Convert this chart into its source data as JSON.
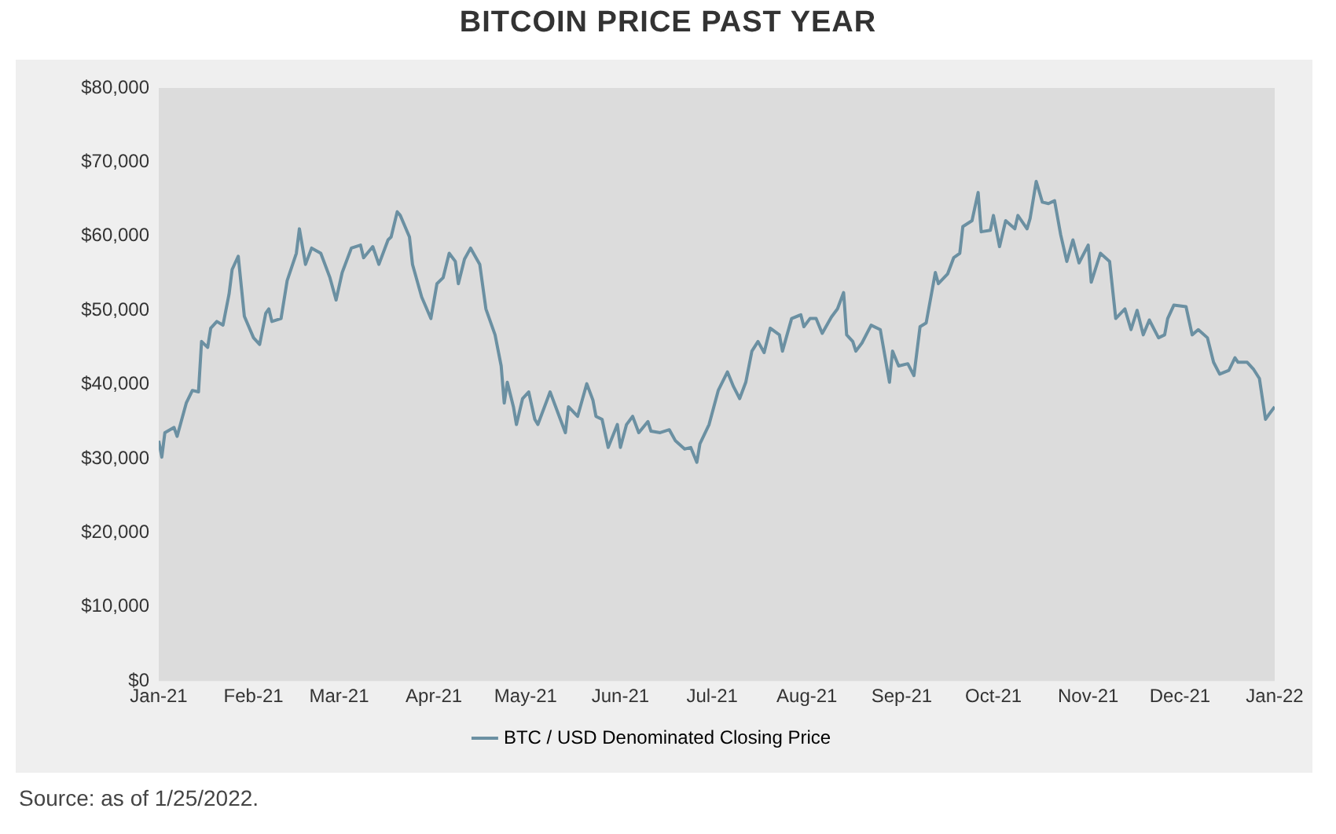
{
  "chart_data": {
    "type": "line",
    "title": "BITCOIN PRICE PAST YEAR",
    "annotations": [
      "Source: as of 1/25/2022."
    ],
    "legend": "bottom",
    "marker": "none",
    "line_style": "solid",
    "grid": false,
    "ylim": [
      0,
      80000
    ],
    "yticks": [
      {
        "value": 0,
        "label": "$0"
      },
      {
        "value": 10000,
        "label": "$10,000"
      },
      {
        "value": 20000,
        "label": "$20,000"
      },
      {
        "value": 30000,
        "label": "$30,000"
      },
      {
        "value": 40000,
        "label": "$40,000"
      },
      {
        "value": 50000,
        "label": "$50,000"
      },
      {
        "value": 60000,
        "label": "$60,000"
      },
      {
        "value": 70000,
        "label": "$70,000"
      },
      {
        "value": 80000,
        "label": "$80,000"
      }
    ],
    "xlim": [
      "2021-01-01",
      "2022-01-01"
    ],
    "xticks": [
      {
        "value": "2021-01-01",
        "label": "Jan-21"
      },
      {
        "value": "2021-02-01",
        "label": "Feb-21"
      },
      {
        "value": "2021-03-01",
        "label": "Mar-21"
      },
      {
        "value": "2021-04-01",
        "label": "Apr-21"
      },
      {
        "value": "2021-05-01",
        "label": "May-21"
      },
      {
        "value": "2021-06-01",
        "label": "Jun-21"
      },
      {
        "value": "2021-07-01",
        "label": "Jul-21"
      },
      {
        "value": "2021-08-01",
        "label": "Aug-21"
      },
      {
        "value": "2021-09-01",
        "label": "Sep-21"
      },
      {
        "value": "2021-10-01",
        "label": "Oct-21"
      },
      {
        "value": "2021-11-01",
        "label": "Nov-21"
      },
      {
        "value": "2021-12-01",
        "label": "Dec-21"
      },
      {
        "value": "2022-01-01",
        "label": "Jan-22"
      }
    ],
    "x": [
      "2021-01-01",
      "2021-01-02",
      "2021-01-03",
      "2021-01-06",
      "2021-01-07",
      "2021-01-10",
      "2021-01-12",
      "2021-01-14",
      "2021-01-15",
      "2021-01-17",
      "2021-01-18",
      "2021-01-20",
      "2021-01-22",
      "2021-01-24",
      "2021-01-25",
      "2021-01-27",
      "2021-01-29",
      "2021-02-01",
      "2021-02-03",
      "2021-02-05",
      "2021-02-06",
      "2021-02-07",
      "2021-02-10",
      "2021-02-12",
      "2021-02-15",
      "2021-02-16",
      "2021-02-18",
      "2021-02-20",
      "2021-02-23",
      "2021-02-26",
      "2021-02-28",
      "2021-03-02",
      "2021-03-05",
      "2021-03-08",
      "2021-03-09",
      "2021-03-12",
      "2021-03-14",
      "2021-03-17",
      "2021-03-18",
      "2021-03-20",
      "2021-03-21",
      "2021-03-24",
      "2021-03-25",
      "2021-03-28",
      "2021-03-31",
      "2021-04-02",
      "2021-04-04",
      "2021-04-06",
      "2021-04-08",
      "2021-04-09",
      "2021-04-11",
      "2021-04-13",
      "2021-04-16",
      "2021-04-18",
      "2021-04-21",
      "2021-04-23",
      "2021-04-24",
      "2021-04-25",
      "2021-04-27",
      "2021-04-28",
      "2021-04-30",
      "2021-05-02",
      "2021-05-04",
      "2021-05-05",
      "2021-05-09",
      "2021-05-12",
      "2021-05-14",
      "2021-05-15",
      "2021-05-18",
      "2021-05-21",
      "2021-05-23",
      "2021-05-24",
      "2021-05-26",
      "2021-05-28",
      "2021-05-31",
      "2021-06-01",
      "2021-06-03",
      "2021-06-05",
      "2021-06-07",
      "2021-06-10",
      "2021-06-11",
      "2021-06-14",
      "2021-06-17",
      "2021-06-19",
      "2021-06-22",
      "2021-06-24",
      "2021-06-26",
      "2021-06-27",
      "2021-06-30",
      "2021-07-03",
      "2021-07-06",
      "2021-07-08",
      "2021-07-10",
      "2021-07-12",
      "2021-07-14",
      "2021-07-16",
      "2021-07-18",
      "2021-07-20",
      "2021-07-23",
      "2021-07-24",
      "2021-07-27",
      "2021-07-30",
      "2021-07-31",
      "2021-08-02",
      "2021-08-04",
      "2021-08-06",
      "2021-08-09",
      "2021-08-11",
      "2021-08-13",
      "2021-08-14",
      "2021-08-16",
      "2021-08-17",
      "2021-08-19",
      "2021-08-22",
      "2021-08-25",
      "2021-08-28",
      "2021-08-29",
      "2021-08-31",
      "2021-09-03",
      "2021-09-05",
      "2021-09-07",
      "2021-09-09",
      "2021-09-12",
      "2021-09-13",
      "2021-09-16",
      "2021-09-18",
      "2021-09-20",
      "2021-09-21",
      "2021-09-24",
      "2021-09-26",
      "2021-09-27",
      "2021-09-30",
      "2021-10-01",
      "2021-10-03",
      "2021-10-05",
      "2021-10-08",
      "2021-10-09",
      "2021-10-12",
      "2021-10-13",
      "2021-10-15",
      "2021-10-17",
      "2021-10-19",
      "2021-10-21",
      "2021-10-23",
      "2021-10-25",
      "2021-10-27",
      "2021-10-29",
      "2021-11-01",
      "2021-11-02",
      "2021-11-05",
      "2021-11-08",
      "2021-11-10",
      "2021-11-13",
      "2021-11-15",
      "2021-11-17",
      "2021-11-19",
      "2021-11-21",
      "2021-11-24",
      "2021-11-26",
      "2021-11-27",
      "2021-11-29",
      "2021-12-03",
      "2021-12-05",
      "2021-12-07",
      "2021-12-10",
      "2021-12-12",
      "2021-12-14",
      "2021-12-17",
      "2021-12-19",
      "2021-12-20",
      "2021-12-23",
      "2021-12-25",
      "2021-12-27",
      "2021-12-29",
      "2021-12-30",
      "2022-01-01"
    ],
    "series": [
      {
        "name": "BTC / USD Denominated Closing Price",
        "color": "#6b90a2",
        "values": [
          32400,
          30200,
          33500,
          34200,
          33000,
          37500,
          39200,
          39000,
          45800,
          45000,
          47600,
          48500,
          48000,
          52200,
          55500,
          57300,
          49200,
          46300,
          45400,
          49600,
          50200,
          48500,
          48900,
          54000,
          57700,
          61000,
          56200,
          58400,
          57700,
          54400,
          51400,
          55100,
          58400,
          58800,
          57100,
          58600,
          56200,
          59500,
          59900,
          63300,
          62800,
          59900,
          56200,
          51800,
          48900,
          53600,
          54400,
          57700,
          56600,
          53600,
          56900,
          58400,
          56200,
          50200,
          46700,
          42500,
          37500,
          40300,
          37000,
          34600,
          38100,
          39000,
          35300,
          34600,
          39000,
          35700,
          33500,
          37000,
          35700,
          40100,
          37900,
          35700,
          35300,
          31500,
          34600,
          31500,
          34600,
          35700,
          33500,
          35000,
          33700,
          33500,
          33900,
          32400,
          31300,
          31500,
          29500,
          32000,
          34600,
          39200,
          41700,
          39700,
          38100,
          40300,
          44500,
          45800,
          44300,
          47600,
          46700,
          44500,
          48900,
          49400,
          47800,
          48900,
          48900,
          46900,
          49100,
          50200,
          52400,
          46700,
          45800,
          44500,
          45600,
          48000,
          47400,
          40300,
          44500,
          42500,
          42800,
          41200,
          47800,
          48300,
          55100,
          53600,
          54900,
          57100,
          57700,
          61300,
          62100,
          65900,
          60600,
          60800,
          62800,
          58600,
          62100,
          61000,
          62800,
          61000,
          62400,
          67400,
          64600,
          64400,
          64800,
          60200,
          56600,
          59500,
          56400,
          58800,
          53800,
          57700,
          56600,
          48900,
          50200,
          47400,
          50000,
          46700,
          48700,
          46300,
          46700,
          48900,
          50700,
          50500,
          46700,
          47400,
          46300,
          43000,
          41400,
          41900,
          43600,
          43000,
          43000,
          42100,
          40800,
          35300,
          35900,
          37000
        ]
      }
    ]
  }
}
